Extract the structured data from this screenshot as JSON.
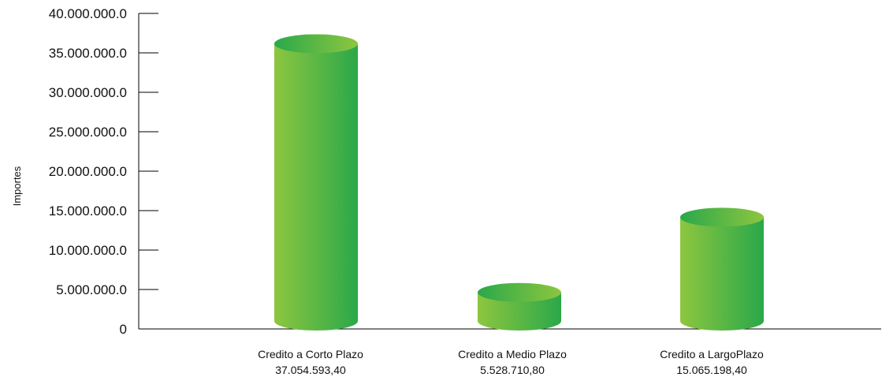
{
  "chart_data": {
    "type": "bar",
    "ylabel": "Importes",
    "xlabel": "",
    "ylim": [
      0,
      40000000
    ],
    "yticks": [
      0,
      5000000,
      10000000,
      15000000,
      20000000,
      25000000,
      30000000,
      35000000,
      40000000
    ],
    "ytick_labels": [
      "0",
      "5.000.000.0",
      "10.000.000.0",
      "15.000.000.0",
      "20.000.000.0",
      "25.000.000.0",
      "30.000.000.0",
      "35.000.000.0",
      "40.000.000.0"
    ],
    "categories": [
      "Credito a Corto Plazo",
      "Credito a Medio Plazo",
      "Credito a LargoPlazo"
    ],
    "value_labels": [
      "37.054.593,40",
      "5.528.710,80",
      "15.065.198,40"
    ],
    "values": [
      37054593.4,
      5528710.8,
      15065198.4
    ],
    "bar_style": "cylinder",
    "grid": false,
    "legend": "none",
    "colors": {
      "bar_light": "#8dc63f",
      "bar_dark": "#2aa84a",
      "axis": "#000000"
    }
  }
}
